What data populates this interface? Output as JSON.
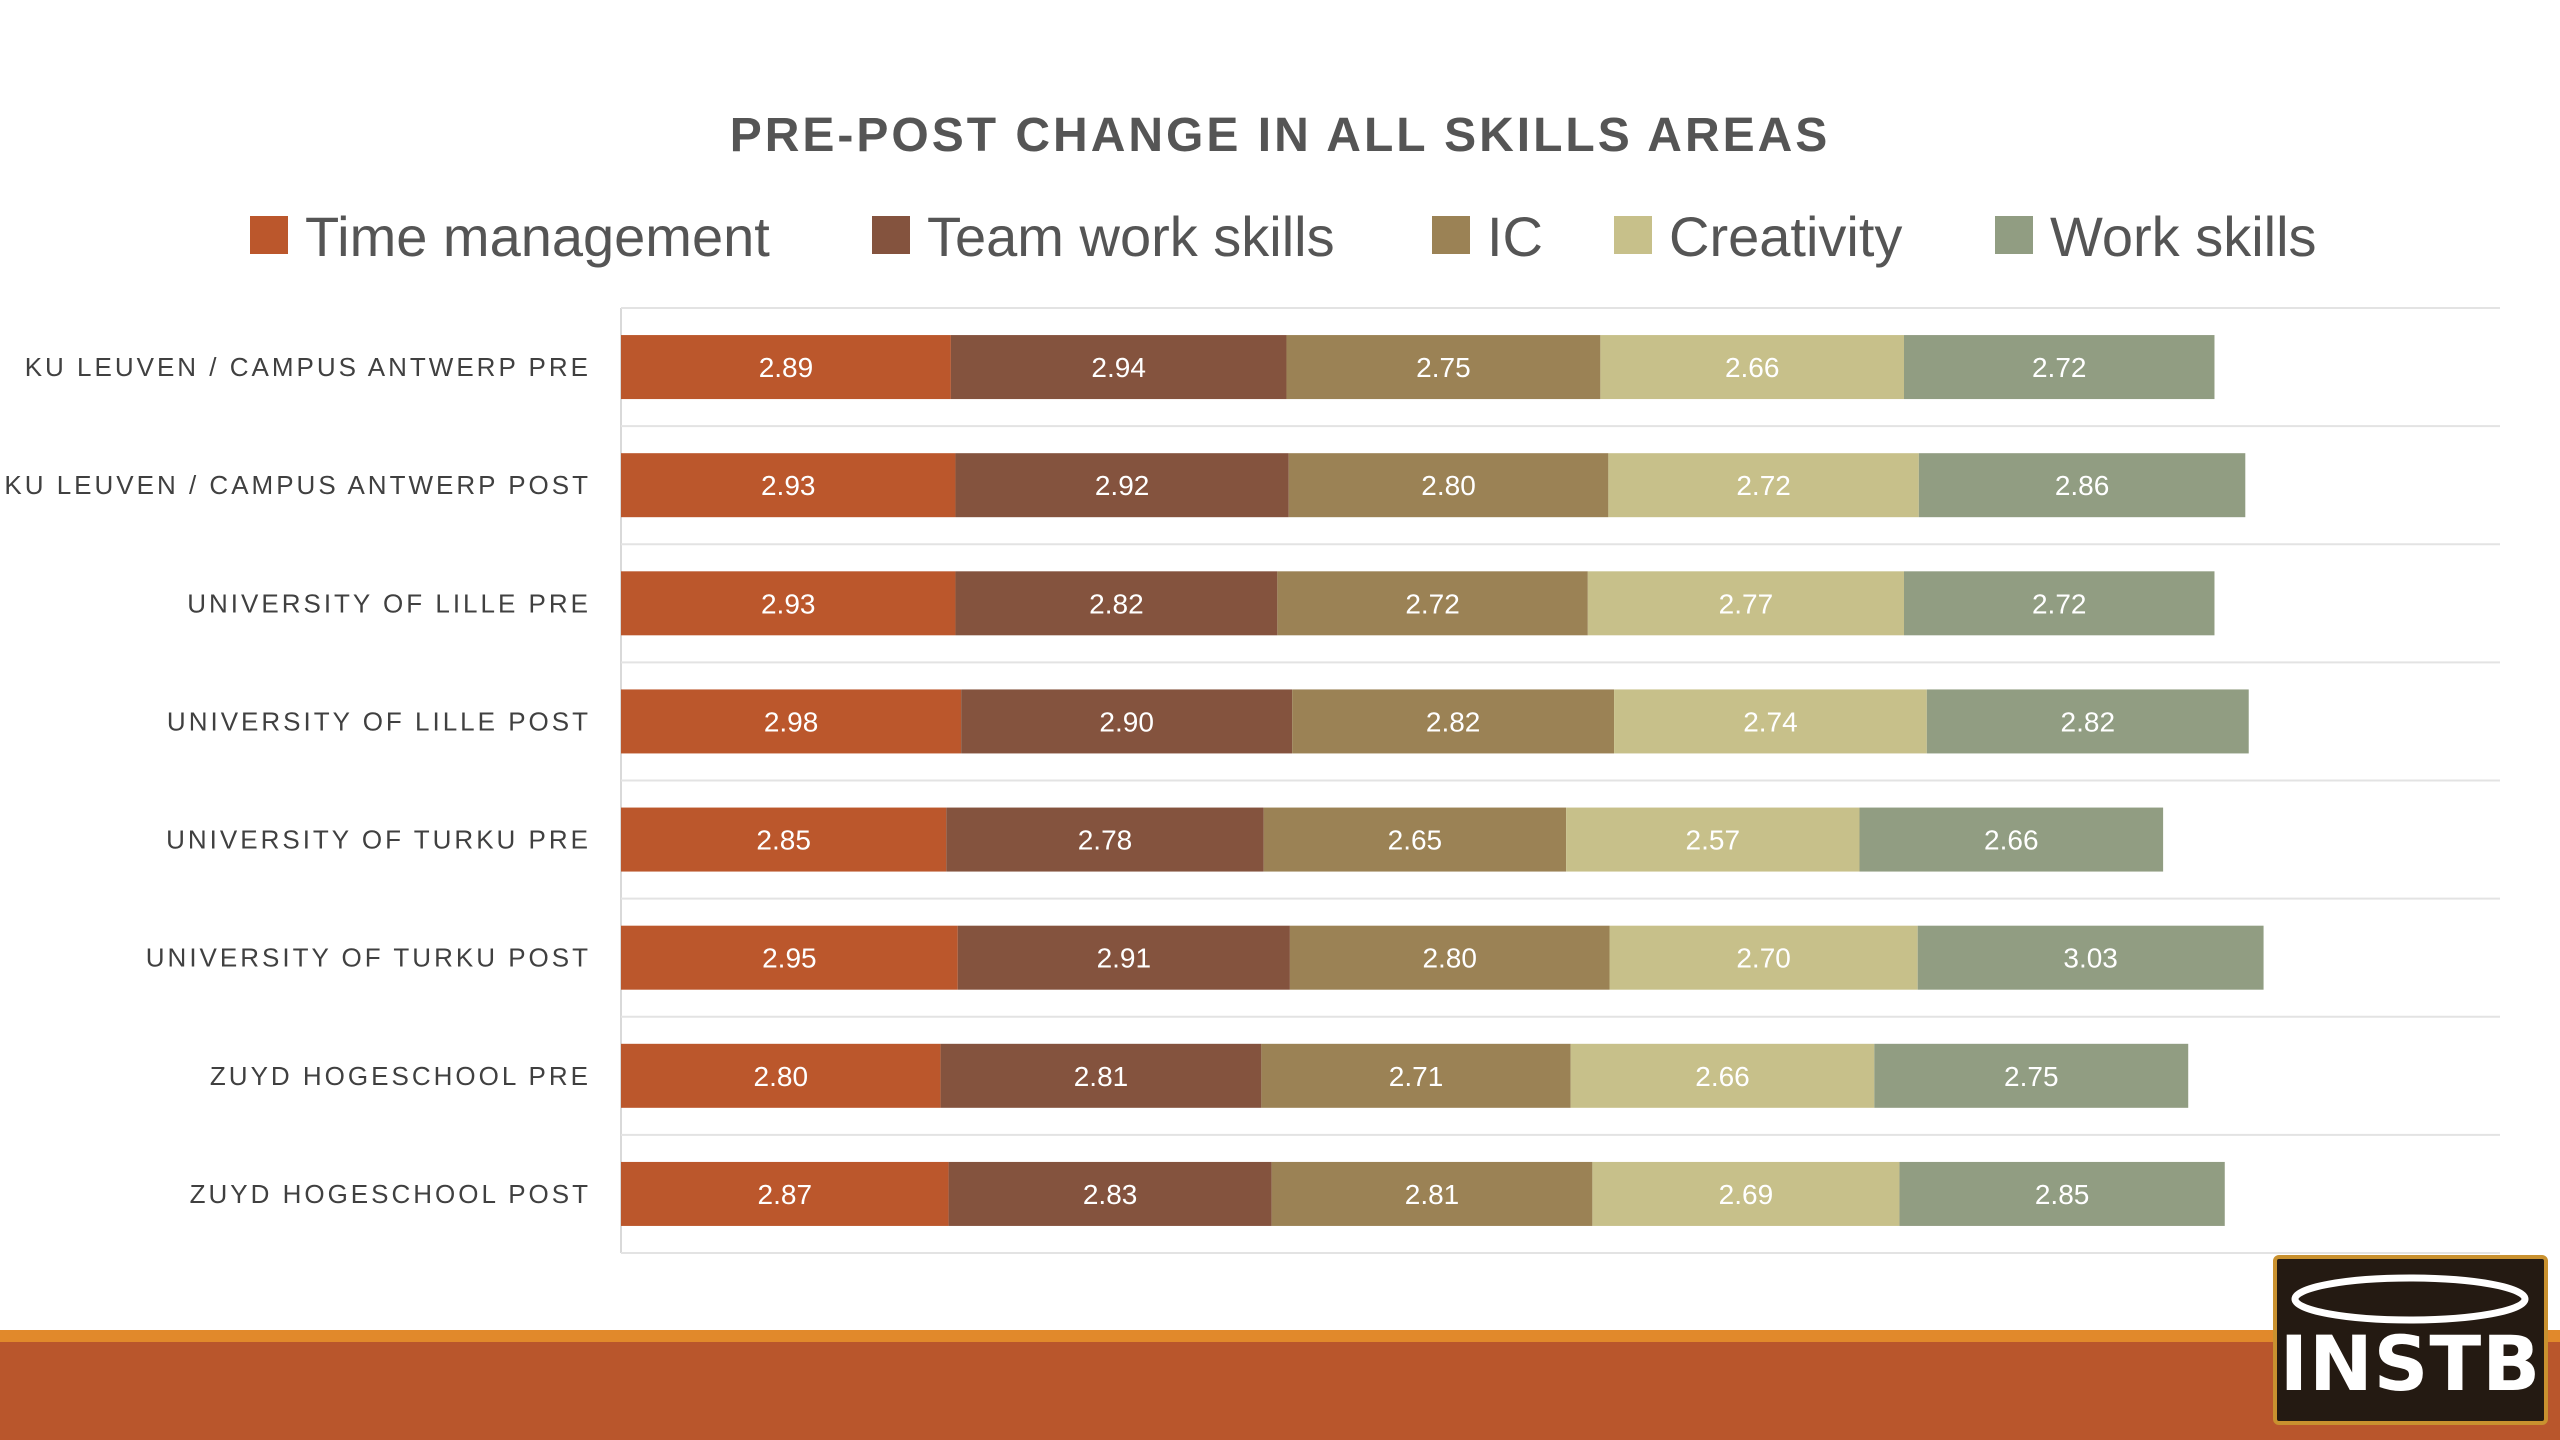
{
  "chart_data": {
    "type": "bar",
    "orientation": "horizontal",
    "stacked": true,
    "title": "PRE-POST CHANGE IN ALL SKILLS AREAS",
    "legend_position": "top",
    "grid": true,
    "xlim": [
      0,
      15
    ],
    "categories": [
      "KU LEUVEN / CAMPUS ANTWERP PRE",
      "KU LEUVEN / CAMPUS ANTWERP POST",
      "UNIVERSITY OF LILLE PRE",
      "UNIVERSITY OF LILLE POST",
      "UNIVERSITY OF TURKU PRE",
      "UNIVERSITY OF TURKU POST",
      "ZUYD HOGESCHOOL PRE",
      "ZUYD HOGESCHOOL POST"
    ],
    "series": [
      {
        "name": "Time management",
        "color": "#bb572c",
        "values": [
          2.89,
          2.93,
          2.93,
          2.98,
          2.85,
          2.95,
          2.8,
          2.87
        ]
      },
      {
        "name": "Team work skills",
        "color": "#84533e",
        "values": [
          2.94,
          2.92,
          2.82,
          2.9,
          2.78,
          2.91,
          2.81,
          2.83
        ]
      },
      {
        "name": "IC",
        "color": "#9b8255",
        "values": [
          2.75,
          2.8,
          2.72,
          2.82,
          2.65,
          2.8,
          2.71,
          2.81
        ]
      },
      {
        "name": "Creativity",
        "color": "#c7c08a",
        "values": [
          2.66,
          2.72,
          2.77,
          2.74,
          2.57,
          2.7,
          2.66,
          2.69
        ]
      },
      {
        "name": "Work skills",
        "color": "#919d82",
        "values": [
          2.72,
          2.86,
          2.72,
          2.82,
          2.66,
          3.03,
          2.75,
          2.85
        ]
      }
    ]
  },
  "logo": {
    "text": "INSTB"
  }
}
